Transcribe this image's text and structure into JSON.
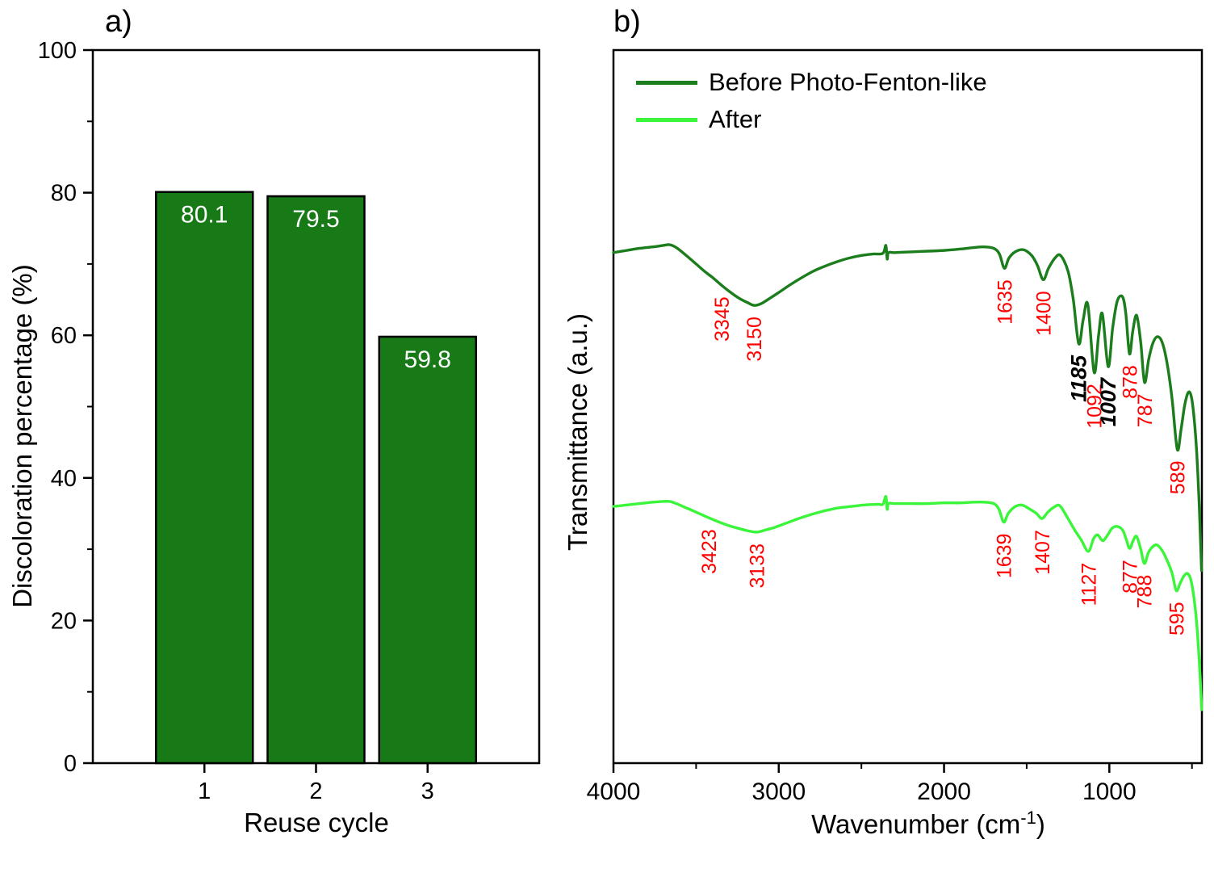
{
  "figure": {
    "panel_a_label": "a)",
    "panel_b_label": "b)"
  },
  "chart_data": [
    {
      "type": "bar",
      "panel": "a",
      "title": "",
      "xlabel": "Reuse cycle",
      "ylabel": "Discoloration percentage (%)",
      "categories": [
        "1",
        "2",
        "3"
      ],
      "values": [
        80.1,
        79.5,
        59.8
      ],
      "bar_labels": [
        "80.1",
        "79.5",
        "59.8"
      ],
      "ylim": [
        0,
        100
      ],
      "yticks": [
        0,
        20,
        40,
        60,
        80,
        100
      ],
      "yticks_minor": [
        10,
        30,
        50,
        70,
        90
      ],
      "bar_color": "#177a17",
      "bar_edge_color": "#000000",
      "bar_label_color": "#ffffff",
      "grid": false
    },
    {
      "type": "line",
      "panel": "b",
      "title": "",
      "xlabel_parts": [
        "Wavenumber (cm",
        "-1",
        ")"
      ],
      "ylabel": "Transmittance (a.u.)",
      "xlim": [
        4000,
        440
      ],
      "x_reversed": true,
      "xticks": [
        4000,
        3000,
        2000,
        1000
      ],
      "xticks_minor": [
        3500,
        2500,
        1500,
        500
      ],
      "grid": false,
      "legend": {
        "position": "top-left",
        "entries": [
          {
            "label": "Before Photo-Fenton-like",
            "color": "#1b7d1b"
          },
          {
            "label": "After",
            "color": "#3bf53b"
          }
        ]
      },
      "series": [
        {
          "name": "Before Photo-Fenton-like",
          "color": "#1b7d1b",
          "points": [
            [
              4000,
              0.716
            ],
            [
              3920,
              0.719
            ],
            [
              3840,
              0.722
            ],
            [
              3760,
              0.724
            ],
            [
              3700,
              0.726
            ],
            [
              3660,
              0.727
            ],
            [
              3620,
              0.723
            ],
            [
              3560,
              0.712
            ],
            [
              3500,
              0.7
            ],
            [
              3440,
              0.688
            ],
            [
              3400,
              0.681
            ],
            [
              3345,
              0.67
            ],
            [
              3290,
              0.66
            ],
            [
              3240,
              0.652
            ],
            [
              3190,
              0.646
            ],
            [
              3150,
              0.642
            ],
            [
              3110,
              0.644
            ],
            [
              3060,
              0.651
            ],
            [
              3000,
              0.66
            ],
            [
              2930,
              0.671
            ],
            [
              2860,
              0.681
            ],
            [
              2790,
              0.69
            ],
            [
              2720,
              0.697
            ],
            [
              2650,
              0.703
            ],
            [
              2580,
              0.708
            ],
            [
              2500,
              0.712
            ],
            [
              2430,
              0.714
            ],
            [
              2370,
              0.715
            ],
            [
              2352,
              0.726
            ],
            [
              2344,
              0.707
            ],
            [
              2336,
              0.716
            ],
            [
              2300,
              0.716
            ],
            [
              2200,
              0.717
            ],
            [
              2100,
              0.718
            ],
            [
              2000,
              0.719
            ],
            [
              1900,
              0.721
            ],
            [
              1820,
              0.723
            ],
            [
              1760,
              0.724
            ],
            [
              1700,
              0.722
            ],
            [
              1665,
              0.714
            ],
            [
              1635,
              0.694
            ],
            [
              1608,
              0.708
            ],
            [
              1570,
              0.717
            ],
            [
              1520,
              0.72
            ],
            [
              1470,
              0.712
            ],
            [
              1435,
              0.698
            ],
            [
              1400,
              0.678
            ],
            [
              1368,
              0.694
            ],
            [
              1330,
              0.708
            ],
            [
              1295,
              0.712
            ],
            [
              1250,
              0.69
            ],
            [
              1218,
              0.65
            ],
            [
              1185,
              0.588
            ],
            [
              1158,
              0.622
            ],
            [
              1130,
              0.643
            ],
            [
              1092,
              0.548
            ],
            [
              1065,
              0.6
            ],
            [
              1042,
              0.63
            ],
            [
              1007,
              0.556
            ],
            [
              980,
              0.61
            ],
            [
              952,
              0.648
            ],
            [
              920,
              0.654
            ],
            [
              900,
              0.63
            ],
            [
              878,
              0.574
            ],
            [
              858,
              0.606
            ],
            [
              835,
              0.628
            ],
            [
              810,
              0.59
            ],
            [
              787,
              0.534
            ],
            [
              762,
              0.566
            ],
            [
              738,
              0.588
            ],
            [
              710,
              0.598
            ],
            [
              680,
              0.59
            ],
            [
              650,
              0.56
            ],
            [
              620,
              0.51
            ],
            [
              589,
              0.44
            ],
            [
              566,
              0.468
            ],
            [
              544,
              0.502
            ],
            [
              522,
              0.52
            ],
            [
              504,
              0.514
            ],
            [
              488,
              0.486
            ],
            [
              472,
              0.438
            ],
            [
              458,
              0.372
            ],
            [
              448,
              0.31
            ],
            [
              442,
              0.27
            ]
          ],
          "annotations": [
            {
              "x": 3345,
              "label": "3345",
              "color": "#ff0000",
              "emphasis": false
            },
            {
              "x": 3150,
              "label": "3150",
              "color": "#ff0000",
              "emphasis": false
            },
            {
              "x": 1635,
              "label": "1635",
              "color": "#ff0000",
              "emphasis": false
            },
            {
              "x": 1400,
              "label": "1400",
              "color": "#ff0000",
              "emphasis": false
            },
            {
              "x": 1185,
              "label": "1185",
              "color": "#000000",
              "emphasis": true
            },
            {
              "x": 1092,
              "label": "1092",
              "color": "#ff0000",
              "emphasis": false
            },
            {
              "x": 1007,
              "label": "1007",
              "color": "#000000",
              "emphasis": true
            },
            {
              "x": 878,
              "label": "878",
              "color": "#ff0000",
              "emphasis": false
            },
            {
              "x": 787,
              "label": "787",
              "color": "#ff0000",
              "emphasis": false
            },
            {
              "x": 589,
              "label": "589",
              "color": "#ff0000",
              "emphasis": false
            }
          ]
        },
        {
          "name": "After",
          "color": "#3bf53b",
          "points": [
            [
              4000,
              0.36
            ],
            [
              3920,
              0.362
            ],
            [
              3840,
              0.364
            ],
            [
              3760,
              0.366
            ],
            [
              3700,
              0.367
            ],
            [
              3660,
              0.367
            ],
            [
              3620,
              0.364
            ],
            [
              3560,
              0.358
            ],
            [
              3500,
              0.352
            ],
            [
              3423,
              0.344
            ],
            [
              3360,
              0.338
            ],
            [
              3300,
              0.333
            ],
            [
              3240,
              0.329
            ],
            [
              3190,
              0.326
            ],
            [
              3133,
              0.324
            ],
            [
              3080,
              0.327
            ],
            [
              3020,
              0.331
            ],
            [
              2950,
              0.337
            ],
            [
              2880,
              0.343
            ],
            [
              2800,
              0.349
            ],
            [
              2720,
              0.354
            ],
            [
              2640,
              0.358
            ],
            [
              2560,
              0.36
            ],
            [
              2480,
              0.362
            ],
            [
              2400,
              0.363
            ],
            [
              2370,
              0.363
            ],
            [
              2352,
              0.374
            ],
            [
              2344,
              0.356
            ],
            [
              2336,
              0.364
            ],
            [
              2300,
              0.364
            ],
            [
              2200,
              0.364
            ],
            [
              2100,
              0.364
            ],
            [
              2000,
              0.365
            ],
            [
              1900,
              0.365
            ],
            [
              1820,
              0.366
            ],
            [
              1760,
              0.366
            ],
            [
              1700,
              0.364
            ],
            [
              1668,
              0.356
            ],
            [
              1639,
              0.338
            ],
            [
              1612,
              0.35
            ],
            [
              1575,
              0.359
            ],
            [
              1530,
              0.362
            ],
            [
              1480,
              0.356
            ],
            [
              1440,
              0.35
            ],
            [
              1407,
              0.343
            ],
            [
              1372,
              0.352
            ],
            [
              1335,
              0.359
            ],
            [
              1300,
              0.361
            ],
            [
              1255,
              0.345
            ],
            [
              1210,
              0.327
            ],
            [
              1170,
              0.313
            ],
            [
              1127,
              0.297
            ],
            [
              1095,
              0.315
            ],
            [
              1070,
              0.32
            ],
            [
              1040,
              0.312
            ],
            [
              1010,
              0.32
            ],
            [
              985,
              0.329
            ],
            [
              955,
              0.332
            ],
            [
              920,
              0.327
            ],
            [
              898,
              0.314
            ],
            [
              877,
              0.301
            ],
            [
              856,
              0.312
            ],
            [
              835,
              0.318
            ],
            [
              810,
              0.3
            ],
            [
              788,
              0.28
            ],
            [
              764,
              0.295
            ],
            [
              740,
              0.303
            ],
            [
              712,
              0.306
            ],
            [
              680,
              0.298
            ],
            [
              648,
              0.283
            ],
            [
              620,
              0.266
            ],
            [
              595,
              0.242
            ],
            [
              572,
              0.252
            ],
            [
              550,
              0.262
            ],
            [
              528,
              0.266
            ],
            [
              508,
              0.258
            ],
            [
              488,
              0.232
            ],
            [
              470,
              0.192
            ],
            [
              455,
              0.14
            ],
            [
              446,
              0.1
            ],
            [
              441,
              0.075
            ]
          ],
          "annotations": [
            {
              "x": 3423,
              "label": "3423",
              "color": "#ff0000",
              "emphasis": false
            },
            {
              "x": 3133,
              "label": "3133",
              "color": "#ff0000",
              "emphasis": false
            },
            {
              "x": 1639,
              "label": "1639",
              "color": "#ff0000",
              "emphasis": false
            },
            {
              "x": 1407,
              "label": "1407",
              "color": "#ff0000",
              "emphasis": false
            },
            {
              "x": 1127,
              "label": "1127",
              "color": "#ff0000",
              "emphasis": false
            },
            {
              "x": 877,
              "label": "877",
              "color": "#ff0000",
              "emphasis": false
            },
            {
              "x": 788,
              "label": "788",
              "color": "#ff0000",
              "emphasis": false
            },
            {
              "x": 595,
              "label": "595",
              "color": "#ff0000",
              "emphasis": false
            }
          ]
        }
      ]
    }
  ]
}
